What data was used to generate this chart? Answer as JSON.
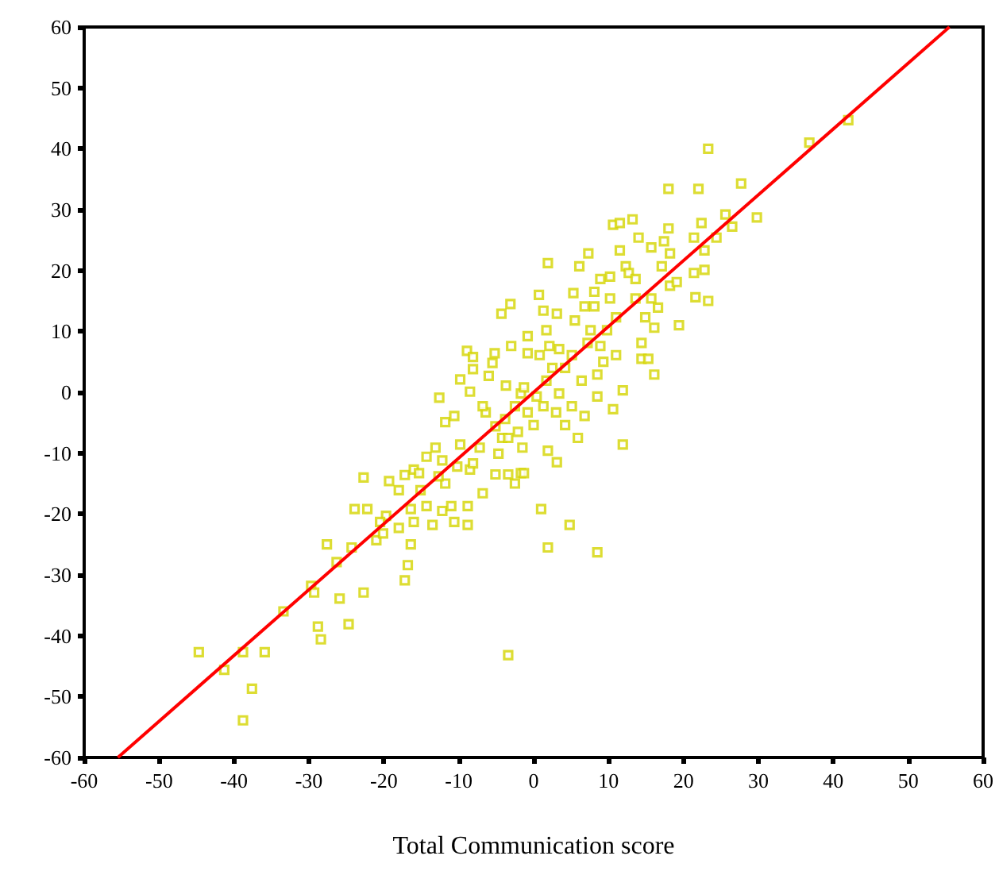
{
  "chart_data": {
    "type": "scatter",
    "xlabel": "Total Communication score",
    "xlim": [
      -60,
      60
    ],
    "ylim": [
      -60,
      60
    ],
    "xticks": [
      -60,
      -50,
      -40,
      -30,
      -20,
      -10,
      0,
      10,
      20,
      30,
      40,
      50,
      60
    ],
    "yticks": [
      -60,
      -50,
      -40,
      -30,
      -20,
      -10,
      0,
      10,
      20,
      30,
      40,
      50,
      60
    ],
    "grid": false,
    "series": [
      {
        "color": "#d4d400",
        "marker": "square",
        "x": [
          -44.7,
          -41.3,
          -38.8,
          -35.9,
          -37.6,
          -38.8,
          -33.4,
          -29.7,
          -29.3,
          -28.8,
          -28.4,
          -25.9,
          -24.7,
          -22.7,
          -27.6,
          -26.3,
          -24.3,
          -23.9,
          -22.2,
          -22.7,
          -21,
          -20.1,
          -19.7,
          -20.5,
          -19.3,
          -18,
          -18,
          -17.2,
          -16.8,
          -16.4,
          -16.4,
          -16,
          -17.2,
          -16,
          -15.1,
          -14.3,
          -13.5,
          -13.1,
          -12.6,
          -12.2,
          -11.8,
          -12.2,
          -11,
          -10.6,
          -8.8,
          -8.8,
          -11.8,
          -10.6,
          -9.8,
          -8.9,
          -8.1,
          -8.5,
          -8.1,
          -9.8,
          -8.5,
          -6.8,
          -7.2,
          -6,
          -5.5,
          -5.2,
          -4.3,
          -3.1,
          -6.4,
          -5.1,
          -4.7,
          -5.1,
          -3.4,
          -2.5,
          -4.2,
          -3.7,
          -2.5,
          -1.7,
          -0.8,
          0,
          -1.5,
          -1.7,
          -1.3,
          -3.4,
          1,
          1.9,
          1.9,
          3.1,
          4.8,
          8.5,
          0.7,
          1.9,
          1.3,
          3.1,
          -3,
          -0.8,
          -0.8,
          0.8,
          2.5,
          1.7,
          3.4,
          3,
          4.2,
          5.1,
          5.9,
          6.4,
          6.8,
          5.5,
          5.3,
          6.1,
          7.3,
          6.8,
          8.1,
          7.6,
          8.9,
          8.5,
          8.5,
          9.3,
          10.2,
          10.2,
          10.6,
          11.5,
          13.2,
          11,
          11,
          11.9,
          10.6,
          11.9,
          11.5,
          12.3,
          14,
          13.6,
          14.4,
          14.4,
          16.1,
          15.3,
          14.9,
          16.1,
          15.7,
          16.6,
          15.7,
          17.4,
          18,
          18.2,
          18,
          17.1,
          19.4,
          18.2,
          19.1,
          21.4,
          21.4,
          22,
          22.4,
          22.8,
          22.8,
          23.3,
          23.3,
          21.6,
          24.4,
          25.6,
          26.5,
          27.7,
          29.8,
          36.8,
          42,
          3.4,
          1.7,
          4.2,
          -6.8,
          -14.3,
          -15.3,
          -12.7,
          -10.2,
          -8.1,
          -3.4,
          -2.1,
          -3.8,
          -1.3,
          0.4,
          1.3,
          2.1,
          5.1,
          7.2,
          9.8,
          8.9,
          8.1,
          12.7,
          13.6
        ],
        "values": [
          -42.7,
          -45.6,
          -42.7,
          -42.7,
          -48.7,
          -53.9,
          -36,
          -31.8,
          -32.9,
          -38.5,
          -40.6,
          -33.9,
          -38.1,
          -32.9,
          -25,
          -27.9,
          -25.5,
          -19.2,
          -19.2,
          -14,
          -24.3,
          -23.2,
          -20.3,
          -21.3,
          -14.6,
          -16.1,
          -22.3,
          -30.9,
          -28.4,
          -25,
          -19.2,
          -21.3,
          -13.6,
          -12.7,
          -16.1,
          -18.7,
          -21.8,
          -9.1,
          -0.9,
          -11.2,
          -15,
          -19.5,
          -18.7,
          -21.3,
          -18.7,
          -21.8,
          -4.9,
          -3.9,
          2.1,
          6.8,
          5.8,
          0.1,
          3.8,
          -8.6,
          -12.7,
          -16.6,
          -9.1,
          2.7,
          4.8,
          6.4,
          12.9,
          14.5,
          -3.3,
          -5.6,
          -10.1,
          -13.5,
          -13.5,
          -15,
          -7.5,
          1.1,
          -2.3,
          -0.2,
          -3.3,
          -5.4,
          -9.1,
          -13.3,
          -13.3,
          -43.2,
          -19.2,
          -25.5,
          -9.6,
          -11.5,
          -21.8,
          -26.3,
          16,
          21.2,
          13.4,
          12.9,
          7.6,
          9.2,
          6.4,
          6.1,
          4,
          1.9,
          -0.2,
          -3.3,
          -5.4,
          -2.3,
          -7.5,
          1.9,
          -3.9,
          11.8,
          16.3,
          20.7,
          22.8,
          14.1,
          14.1,
          10.2,
          7.6,
          2.9,
          -0.7,
          5,
          15.4,
          19,
          27.5,
          27.8,
          28.4,
          12.3,
          6.1,
          0.3,
          -2.8,
          -8.6,
          23.3,
          20.7,
          25.4,
          15.4,
          8.1,
          5.5,
          2.9,
          5.5,
          12.3,
          10.6,
          15.4,
          13.9,
          23.8,
          24.8,
          26.9,
          22.8,
          33.4,
          20.7,
          11,
          17.5,
          18.1,
          25.4,
          19.6,
          33.4,
          27.8,
          23.3,
          20.1,
          40,
          15,
          15.6,
          25.4,
          29.2,
          27.2,
          34.3,
          28.7,
          41,
          44.7,
          7.1,
          10.2,
          4,
          -2.3,
          -10.6,
          -13.3,
          -13.8,
          -12.2,
          -11.7,
          -7.5,
          -6.5,
          -4.4,
          0.8,
          -0.7,
          -2.3,
          7.6,
          6.1,
          8.1,
          10.2,
          18.6,
          16.5,
          19.6,
          18.6
        ]
      },
      {
        "type": "line",
        "color": "#ff0000",
        "marker": "none",
        "line_style": "solid",
        "x": [
          -55.5,
          55.5
        ],
        "values": [
          -60,
          60
        ]
      }
    ]
  }
}
